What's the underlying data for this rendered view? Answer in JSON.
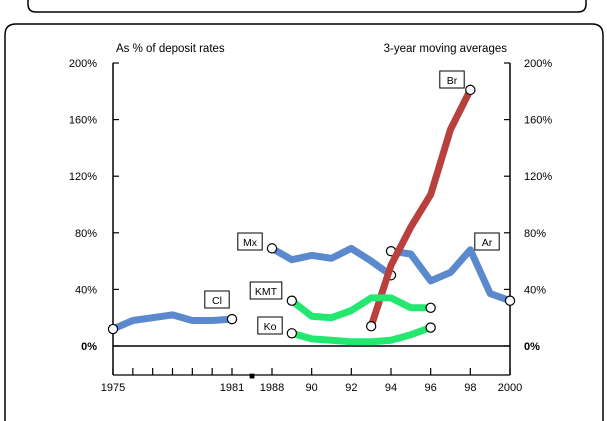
{
  "chart_data": {
    "type": "line",
    "left_note": "As % of deposit rates",
    "right_note": "3-year moving averages",
    "title": "",
    "xlabel": "",
    "ylabel": "",
    "x_segments": [
      {
        "name": "segment-1",
        "ticks": [
          "1975",
          "",
          "",
          "",
          "",
          "",
          "1981"
        ]
      },
      {
        "name": "segment-2",
        "ticks": [
          "1988",
          "90",
          "92",
          "94",
          "96",
          "98",
          "2000"
        ]
      }
    ],
    "axis_break_marker": "■",
    "ylim": [
      0,
      200
    ],
    "yticks": [
      "0%",
      "40%",
      "80%",
      "120%",
      "160%",
      "200%"
    ],
    "ytick_values": [
      0,
      40,
      80,
      120,
      160,
      200
    ],
    "grid": false,
    "series": [
      {
        "name": "Cl",
        "color": "#5b89cd",
        "segment": "segment-1",
        "x": [
          1975,
          1976,
          1977,
          1978,
          1979,
          1980,
          1981
        ],
        "values": [
          12,
          18,
          20,
          22,
          18,
          18,
          19
        ],
        "endpoints": [
          1975,
          1981
        ]
      },
      {
        "name": "Mx",
        "color": "#5b89cd",
        "segment": "segment-2",
        "x": [
          1988,
          1989,
          1990,
          1991,
          1992,
          1993,
          1994
        ],
        "values": [
          69,
          61,
          64,
          62,
          69,
          60,
          50
        ],
        "endpoints": [
          1988,
          1994
        ]
      },
      {
        "name": "Ar",
        "color": "#5b89cd",
        "segment": "segment-2",
        "x": [
          1994,
          1995,
          1996,
          1997,
          1998,
          1999,
          2000
        ],
        "values": [
          67,
          65,
          46,
          52,
          68,
          37,
          32
        ],
        "endpoints": [
          1994,
          2000
        ]
      },
      {
        "name": "Br",
        "color": "#b8413e",
        "segment": "segment-2",
        "x": [
          1993,
          1994,
          1995,
          1996,
          1997,
          1998
        ],
        "values": [
          14,
          57,
          84,
          107,
          153,
          181
        ],
        "endpoints": [
          1993,
          1998
        ]
      },
      {
        "name": "KMT",
        "color": "#22e86f",
        "segment": "segment-2",
        "x": [
          1989,
          1990,
          1991,
          1992,
          1993,
          1994,
          1995,
          1996
        ],
        "values": [
          32,
          21,
          20,
          25,
          34,
          34,
          27,
          27
        ],
        "endpoints": [
          1989,
          1996
        ]
      },
      {
        "name": "Ko",
        "color": "#22e86f",
        "segment": "segment-2",
        "x": [
          1989,
          1990,
          1991,
          1992,
          1993,
          1994,
          1995,
          1996
        ],
        "values": [
          9,
          5,
          4,
          3,
          3,
          4,
          8,
          13
        ],
        "endpoints": [
          1989,
          1996
        ]
      }
    ]
  }
}
